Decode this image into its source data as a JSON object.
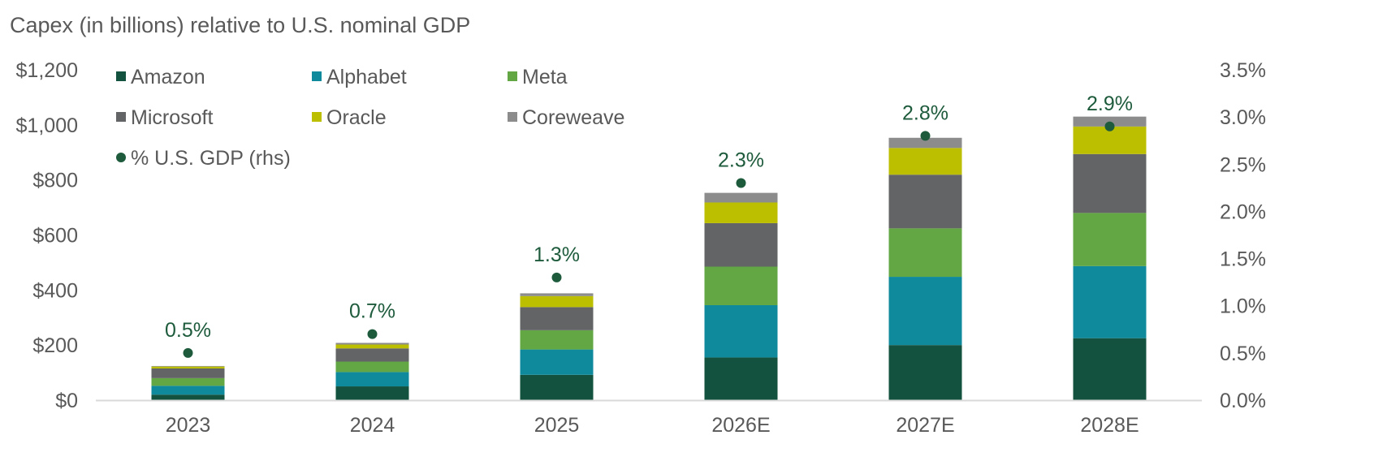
{
  "chart_data": {
    "type": "bar",
    "stacked": true,
    "title": "Capex (in billions) relative to U.S. nominal GDP",
    "categories": [
      "2023",
      "2024",
      "2025",
      "2026E",
      "2027E",
      "2028E"
    ],
    "series": [
      {
        "name": "Amazon",
        "color": "#12523e",
        "values": [
          20,
          50,
          92,
          155,
          200,
          225
        ]
      },
      {
        "name": "Alphabet",
        "color": "#0f8a9d",
        "values": [
          32,
          52,
          92,
          190,
          248,
          262
        ]
      },
      {
        "name": "Meta",
        "color": "#62a744",
        "values": [
          28,
          38,
          70,
          140,
          176,
          193
        ]
      },
      {
        "name": "Microsoft",
        "color": "#636466",
        "values": [
          35,
          48,
          84,
          158,
          195,
          214
        ]
      },
      {
        "name": "Oracle",
        "color": "#bbbf00",
        "values": [
          7,
          14,
          40,
          75,
          97,
          100
        ]
      },
      {
        "name": "Coreweave",
        "color": "#8c8c8c",
        "values": [
          2,
          6,
          10,
          35,
          37,
          36
        ]
      }
    ],
    "line_series": {
      "name": "% U.S. GDP (rhs)",
      "color": "#1e5b3c",
      "values": [
        0.5,
        0.7,
        1.3,
        2.3,
        2.8,
        2.9
      ],
      "data_labels": [
        "0.5%",
        "0.7%",
        "1.3%",
        "2.3%",
        "2.8%",
        "2.9%"
      ]
    },
    "y_left": {
      "range": [
        0,
        1200
      ],
      "ticks": [
        0,
        200,
        400,
        600,
        800,
        1000,
        1200
      ],
      "tick_labels": [
        "$0",
        "$200",
        "$400",
        "$600",
        "$800",
        "$1,000",
        "$1,200"
      ]
    },
    "y_right": {
      "range": [
        0,
        3.5
      ],
      "ticks": [
        0,
        0.5,
        1.0,
        1.5,
        2.0,
        2.5,
        3.0,
        3.5
      ],
      "tick_labels": [
        "0.0%",
        "0.5%",
        "1.0%",
        "1.5%",
        "2.0%",
        "2.5%",
        "3.0%",
        "3.5%"
      ]
    },
    "grid": false,
    "legend_position": "top-left"
  }
}
